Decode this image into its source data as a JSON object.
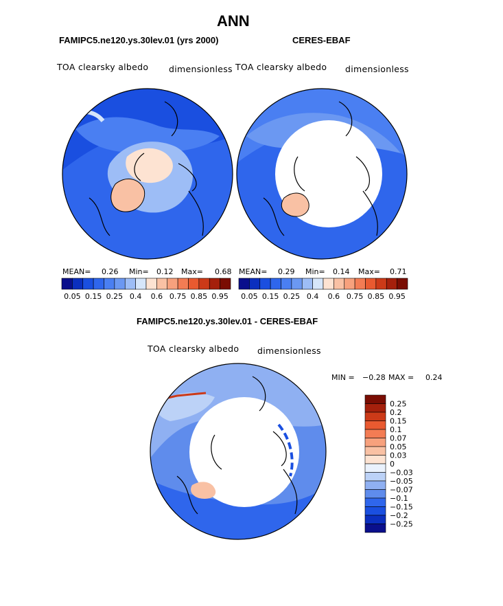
{
  "page": {
    "title": "ANN",
    "colors": {
      "land_outline": "#000000",
      "no_data": "#ffffff"
    }
  },
  "chart_data": [
    {
      "type": "heatmap",
      "projection": "north polar stereographic",
      "title": "FAMIPC5.ne120.ys.30lev.01 (yrs 2000)",
      "variable": "TOA clearsky albedo",
      "units": "dimensionless",
      "stats": {
        "mean_label": "MEAN=",
        "mean": "0.26",
        "min_label": "Min=",
        "min": "0.12",
        "max_label": "Max=",
        "max": "0.68"
      },
      "colorbar": {
        "orientation": "horizontal",
        "levels": [
          0.05,
          0.1,
          0.15,
          0.2,
          0.25,
          0.3,
          0.4,
          0.5,
          0.6,
          0.7,
          0.75,
          0.8,
          0.85,
          0.9,
          0.95
        ],
        "tick_labels": [
          "0.05",
          "0.15",
          "0.25",
          "0.4",
          "0.6",
          "0.75",
          "0.85",
          "0.95"
        ],
        "colors": [
          "#0a0f8c",
          "#0b2fbf",
          "#1a4fe0",
          "#2f66ec",
          "#4a7ff2",
          "#6b98f2",
          "#9dbdf6",
          "#d6e6fa",
          "#fde3d2",
          "#f9c1a4",
          "#f7a17d",
          "#f37c54",
          "#e95a30",
          "#cc3a18",
          "#a5200c",
          "#7a0d03"
        ]
      }
    },
    {
      "type": "heatmap",
      "projection": "north polar stereographic",
      "title": "CERES-EBAF",
      "variable": "TOA clearsky albedo",
      "units": "dimensionless",
      "stats": {
        "mean_label": "MEAN=",
        "mean": "0.29",
        "min_label": "Min=",
        "min": "0.14",
        "max_label": "Max=",
        "max": "0.71"
      },
      "colorbar": {
        "orientation": "horizontal",
        "levels": [
          0.05,
          0.1,
          0.15,
          0.2,
          0.25,
          0.3,
          0.4,
          0.5,
          0.6,
          0.7,
          0.75,
          0.8,
          0.85,
          0.9,
          0.95
        ],
        "tick_labels": [
          "0.05",
          "0.15",
          "0.25",
          "0.4",
          "0.6",
          "0.75",
          "0.85",
          "0.95"
        ],
        "colors": [
          "#0a0f8c",
          "#0b2fbf",
          "#1a4fe0",
          "#2f66ec",
          "#4a7ff2",
          "#6b98f2",
          "#9dbdf6",
          "#d6e6fa",
          "#fde3d2",
          "#f9c1a4",
          "#f7a17d",
          "#f37c54",
          "#e95a30",
          "#cc3a18",
          "#a5200c",
          "#7a0d03"
        ]
      }
    },
    {
      "type": "heatmap",
      "projection": "north polar stereographic",
      "title": "FAMIPC5.ne120.ys.30lev.01 - CERES-EBAF",
      "variable": "TOA clearsky albedo",
      "units": "dimensionless",
      "stats": {
        "min_label": "MIN =",
        "min": "−0.28",
        "max_label": "MAX =",
        "max": "0.24"
      },
      "colorbar": {
        "orientation": "vertical",
        "levels": [
          0.25,
          0.2,
          0.15,
          0.1,
          0.07,
          0.05,
          0.03,
          0,
          -0.03,
          -0.05,
          -0.07,
          -0.1,
          -0.15,
          -0.2,
          -0.25
        ],
        "tick_labels": [
          "0.25",
          "0.2",
          "0.15",
          "0.1",
          "0.07",
          "0.05",
          "0.03",
          "0",
          "−0.03",
          "−0.05",
          "−0.07",
          "−0.1",
          "−0.15",
          "−0.2",
          "−0.25"
        ],
        "colors": [
          "#7a0d03",
          "#a5200c",
          "#cc3a18",
          "#e95a30",
          "#f37c54",
          "#f7a17d",
          "#f9c1a4",
          "#fde3d2",
          "#eaf2fd",
          "#bcd2f7",
          "#8fb0f2",
          "#5f8cec",
          "#2f66ec",
          "#1a4fe0",
          "#0b2fbf",
          "#0a0f8c"
        ]
      }
    }
  ]
}
